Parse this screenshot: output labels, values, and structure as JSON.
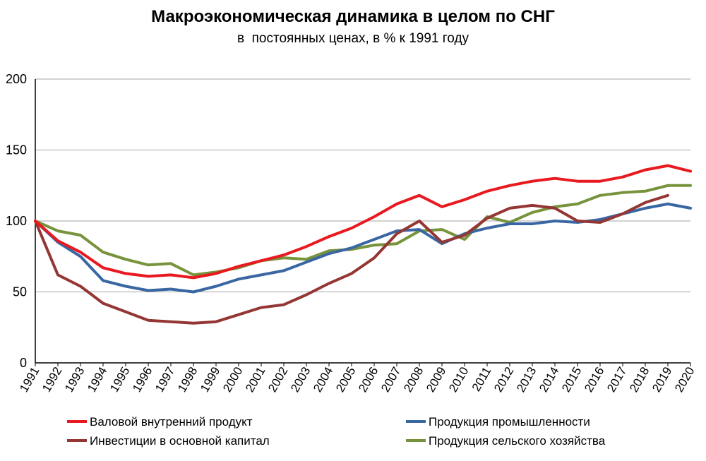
{
  "chart_data": {
    "type": "line",
    "title": "Макроэкономическая динамика в целом по СНГ",
    "subtitle": "в  постоянных ценах, в % к 1991 году",
    "x": [
      "1991",
      "1992",
      "1993",
      "1994",
      "1995",
      "1996",
      "1997",
      "1998",
      "1999",
      "2000",
      "2001",
      "2002",
      "2003",
      "2004",
      "2005",
      "2006",
      "2007",
      "2008",
      "2009",
      "2010",
      "2011",
      "2012",
      "2013",
      "2014",
      "2015",
      "2016",
      "2017",
      "2018",
      "2019",
      "2020"
    ],
    "ylim": [
      0,
      200
    ],
    "yticks": [
      "0",
      "50",
      "100",
      "150",
      "200"
    ],
    "grid": true,
    "legend_position": "bottom",
    "series": [
      {
        "name": "Валовой внутренний продукт",
        "color": "#e8191f",
        "values": [
          100,
          86,
          78,
          67,
          63,
          61,
          62,
          60,
          63,
          68,
          72,
          76,
          82,
          89,
          95,
          103,
          112,
          118,
          110,
          115,
          121,
          125,
          128,
          130,
          128,
          128,
          131,
          136,
          139,
          135
        ]
      },
      {
        "name": "Инвестиции в основной капитал",
        "color": "#943634",
        "values": [
          100,
          62,
          54,
          42,
          36,
          30,
          29,
          28,
          29,
          34,
          39,
          41,
          48,
          56,
          63,
          74,
          91,
          100,
          85,
          90,
          102,
          109,
          111,
          109,
          100,
          99,
          105,
          113,
          118,
          null
        ]
      },
      {
        "name": "Продукция промышленности",
        "color": "#3a67a3",
        "values": [
          100,
          85,
          75,
          58,
          54,
          51,
          52,
          50,
          54,
          59,
          62,
          65,
          71,
          77,
          81,
          87,
          93,
          94,
          84,
          91,
          95,
          98,
          98,
          100,
          99,
          101,
          105,
          109,
          112,
          109
        ]
      },
      {
        "name": "Продукция сельского хозяйства",
        "color": "#77933c",
        "values": [
          100,
          93,
          90,
          78,
          73,
          69,
          70,
          62,
          64,
          67,
          72,
          74,
          73,
          79,
          80,
          83,
          84,
          93,
          94,
          87,
          103,
          99,
          106,
          110,
          112,
          118,
          120,
          121,
          125,
          125
        ]
      }
    ]
  }
}
